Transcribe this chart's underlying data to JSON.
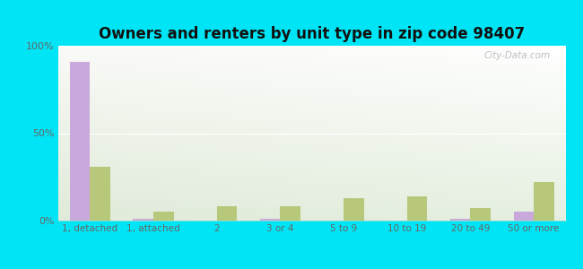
{
  "title": "Owners and renters by unit type in zip code 98407",
  "categories": [
    "1, detached",
    "1, attached",
    "2",
    "3 or 4",
    "5 to 9",
    "10 to 19",
    "20 to 49",
    "50 or more"
  ],
  "owner_values": [
    91,
    1,
    0,
    1,
    0,
    0,
    1,
    5
  ],
  "renter_values": [
    31,
    5,
    8,
    8,
    13,
    14,
    7,
    22
  ],
  "owner_color": "#c9a8dc",
  "renter_color": "#b8c87a",
  "background_outer": "#00e5f5",
  "ylim": [
    0,
    100
  ],
  "yticks": [
    0,
    50,
    100
  ],
  "ytick_labels": [
    "0%",
    "50%",
    "100%"
  ],
  "watermark": "City-Data.com",
  "bar_width": 0.32,
  "title_fontsize": 12,
  "tick_fontsize": 7.5
}
